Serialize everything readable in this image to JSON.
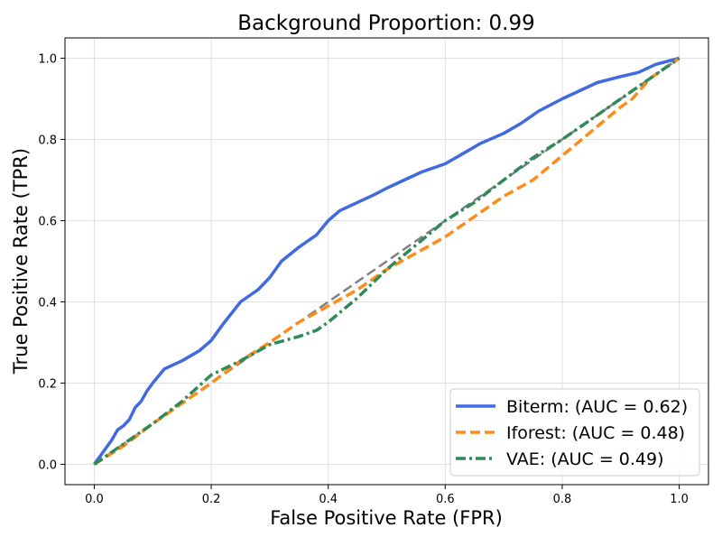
{
  "chart_data": {
    "type": "line",
    "title": "Background Proportion: 0.99",
    "xlabel": "False Positive Rate (FPR)",
    "ylabel": "True Positive Rate (TPR)",
    "xlim": [
      -0.05,
      1.05
    ],
    "ylim": [
      -0.05,
      1.05
    ],
    "xticks": [
      0.0,
      0.2,
      0.4,
      0.6,
      0.8,
      1.0
    ],
    "yticks": [
      0.0,
      0.2,
      0.4,
      0.6,
      0.8,
      1.0
    ],
    "xtick_labels": [
      "0.0",
      "0.2",
      "0.4",
      "0.6",
      "0.8",
      "1.0"
    ],
    "ytick_labels": [
      "0.0",
      "0.2",
      "0.4",
      "0.6",
      "0.8",
      "1.0"
    ],
    "grid": true,
    "legend_position": "lower-right",
    "series": [
      {
        "name": "Biterm: (AUC = 0.62)",
        "color": "#4169e1",
        "style": "solid",
        "x": [
          0,
          0.01,
          0.02,
          0.03,
          0.04,
          0.05,
          0.06,
          0.07,
          0.08,
          0.09,
          0.1,
          0.12,
          0.15,
          0.18,
          0.2,
          0.22,
          0.25,
          0.28,
          0.3,
          0.32,
          0.35,
          0.38,
          0.4,
          0.42,
          0.45,
          0.48,
          0.5,
          0.53,
          0.56,
          0.6,
          0.63,
          0.66,
          0.7,
          0.73,
          0.76,
          0.8,
          0.83,
          0.86,
          0.9,
          0.93,
          0.96,
          1.0
        ],
        "y": [
          0,
          0.02,
          0.04,
          0.06,
          0.085,
          0.095,
          0.11,
          0.14,
          0.155,
          0.18,
          0.2,
          0.235,
          0.255,
          0.28,
          0.305,
          0.345,
          0.4,
          0.43,
          0.46,
          0.5,
          0.535,
          0.565,
          0.6,
          0.625,
          0.645,
          0.665,
          0.68,
          0.7,
          0.72,
          0.74,
          0.765,
          0.79,
          0.815,
          0.84,
          0.87,
          0.9,
          0.92,
          0.94,
          0.955,
          0.965,
          0.985,
          1.0
        ]
      },
      {
        "name": "Iforest: (AUC = 0.48)",
        "color": "#ff8c1a",
        "style": "dashed",
        "x": [
          0,
          0.05,
          0.1,
          0.15,
          0.2,
          0.25,
          0.3,
          0.35,
          0.4,
          0.45,
          0.5,
          0.55,
          0.6,
          0.65,
          0.7,
          0.75,
          0.8,
          0.85,
          0.9,
          0.92,
          0.95,
          1.0
        ],
        "y": [
          0,
          0.045,
          0.1,
          0.15,
          0.2,
          0.255,
          0.3,
          0.35,
          0.39,
          0.43,
          0.48,
          0.52,
          0.56,
          0.61,
          0.66,
          0.7,
          0.76,
          0.82,
          0.88,
          0.9,
          0.95,
          1.0
        ]
      },
      {
        "name": "VAE: (AUC = 0.49)",
        "color": "#2e8b57",
        "style": "dashdot",
        "x": [
          0,
          0.05,
          0.1,
          0.15,
          0.2,
          0.25,
          0.3,
          0.35,
          0.38,
          0.4,
          0.45,
          0.5,
          0.55,
          0.6,
          0.65,
          0.7,
          0.75,
          0.8,
          0.85,
          0.9,
          0.95,
          1.0
        ],
        "y": [
          0,
          0.05,
          0.1,
          0.155,
          0.22,
          0.255,
          0.295,
          0.315,
          0.33,
          0.35,
          0.41,
          0.48,
          0.54,
          0.6,
          0.645,
          0.7,
          0.755,
          0.8,
          0.85,
          0.9,
          0.95,
          1.0
        ]
      },
      {
        "name": "",
        "color": "#808080",
        "style": "dashed",
        "x": [
          0,
          1
        ],
        "y": [
          0,
          1
        ]
      }
    ]
  }
}
